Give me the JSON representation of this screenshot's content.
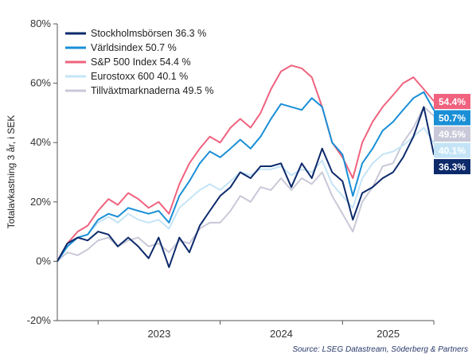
{
  "chart_data": {
    "type": "line",
    "ylabel": "Totalavkastning 3 år, i SEK",
    "y_ticks": [
      "80%",
      "60%",
      "40%",
      "20%",
      "0%",
      "-20%"
    ],
    "y_tick_values": [
      80,
      60,
      40,
      20,
      0,
      -20
    ],
    "ylim": [
      -20,
      80
    ],
    "x_ticks": [
      "2023",
      "2024",
      "2025"
    ],
    "x_range": [
      "2022-09-01",
      "2025-10-01"
    ],
    "grid": false,
    "legend_position": "top-left",
    "source": "Source: LSEG Datastream, Söderberg & Partners",
    "series": [
      {
        "name": "Stockholmsbörsen 36.3 %",
        "end_label": "36.3%",
        "color": "#0d2a6b",
        "x": [
          "2022-09",
          "2022-10",
          "2022-11",
          "2022-12",
          "2023-01",
          "2023-02",
          "2023-03",
          "2023-04",
          "2023-05",
          "2023-06",
          "2023-07",
          "2023-08",
          "2023-09",
          "2023-10",
          "2023-11",
          "2023-12",
          "2024-01",
          "2024-02",
          "2024-03",
          "2024-04",
          "2024-05",
          "2024-06",
          "2024-07",
          "2024-08",
          "2024-09",
          "2024-10",
          "2024-11",
          "2024-12",
          "2025-01",
          "2025-02",
          "2025-03",
          "2025-04",
          "2025-05",
          "2025-06",
          "2025-07",
          "2025-08",
          "2025-09",
          "2025-10"
        ],
        "values": [
          0,
          6,
          8,
          7,
          10,
          9,
          5,
          8,
          5,
          1,
          8,
          -2,
          8,
          3,
          12,
          17,
          22,
          25,
          30,
          28,
          32,
          32,
          33,
          25,
          33,
          28,
          38,
          30,
          27,
          14,
          23,
          25,
          28,
          30,
          35,
          42,
          52,
          36
        ]
      },
      {
        "name": "Världsindex 50.7 %",
        "end_label": "50.7%",
        "color": "#1a8fd6",
        "x": [
          "2022-09",
          "2022-10",
          "2022-11",
          "2022-12",
          "2023-01",
          "2023-02",
          "2023-03",
          "2023-04",
          "2023-05",
          "2023-06",
          "2023-07",
          "2023-08",
          "2023-09",
          "2023-10",
          "2023-11",
          "2023-12",
          "2024-01",
          "2024-02",
          "2024-03",
          "2024-04",
          "2024-05",
          "2024-06",
          "2024-07",
          "2024-08",
          "2024-09",
          "2024-10",
          "2024-11",
          "2024-12",
          "2025-01",
          "2025-02",
          "2025-03",
          "2025-04",
          "2025-05",
          "2025-06",
          "2025-07",
          "2025-08",
          "2025-09",
          "2025-10"
        ],
        "values": [
          0,
          5,
          8,
          9,
          14,
          16,
          15,
          18,
          17,
          16,
          17,
          13,
          22,
          27,
          33,
          37,
          35,
          38,
          41,
          38,
          42,
          48,
          53,
          52,
          51,
          55,
          52,
          40,
          36,
          22,
          33,
          38,
          44,
          47,
          51,
          55,
          57,
          51
        ]
      },
      {
        "name": "S&P 500 Index 54.4 %",
        "end_label": "54.4%",
        "color": "#f0627e",
        "x": [
          "2022-09",
          "2022-10",
          "2022-11",
          "2022-12",
          "2023-01",
          "2023-02",
          "2023-03",
          "2023-04",
          "2023-05",
          "2023-06",
          "2023-07",
          "2023-08",
          "2023-09",
          "2023-10",
          "2023-11",
          "2023-12",
          "2024-01",
          "2024-02",
          "2024-03",
          "2024-04",
          "2024-05",
          "2024-06",
          "2024-07",
          "2024-08",
          "2024-09",
          "2024-10",
          "2024-11",
          "2024-12",
          "2025-01",
          "2025-02",
          "2025-03",
          "2025-04",
          "2025-05",
          "2025-06",
          "2025-07",
          "2025-08",
          "2025-09",
          "2025-10"
        ],
        "values": [
          0,
          6,
          10,
          12,
          17,
          21,
          19,
          23,
          21,
          18,
          20,
          16,
          26,
          33,
          38,
          42,
          40,
          45,
          48,
          45,
          50,
          58,
          64,
          66,
          65,
          62,
          52,
          40,
          35,
          28,
          40,
          47,
          52,
          56,
          60,
          62,
          58,
          54
        ]
      },
      {
        "name": "Eurostoxx 600 40.1 %",
        "end_label": "40.1%",
        "color": "#c4e4f6",
        "x": [
          "2022-09",
          "2022-10",
          "2022-11",
          "2022-12",
          "2023-01",
          "2023-02",
          "2023-03",
          "2023-04",
          "2023-05",
          "2023-06",
          "2023-07",
          "2023-08",
          "2023-09",
          "2023-10",
          "2023-11",
          "2023-12",
          "2024-01",
          "2024-02",
          "2024-03",
          "2024-04",
          "2024-05",
          "2024-06",
          "2024-07",
          "2024-08",
          "2024-09",
          "2024-10",
          "2024-11",
          "2024-12",
          "2025-01",
          "2025-02",
          "2025-03",
          "2025-04",
          "2025-05",
          "2025-06",
          "2025-07",
          "2025-08",
          "2025-09",
          "2025-10"
        ],
        "values": [
          0,
          5,
          8,
          9,
          13,
          15,
          13,
          16,
          14,
          13,
          14,
          11,
          18,
          21,
          24,
          26,
          24,
          27,
          30,
          29,
          31,
          31,
          32,
          29,
          31,
          30,
          34,
          26,
          22,
          18,
          28,
          33,
          36,
          37,
          39,
          42,
          45,
          40
        ]
      },
      {
        "name": "Tillväxtmarknaderna 49.5 %",
        "end_label": "49.5%",
        "color": "#c8c8d8",
        "x": [
          "2022-09",
          "2022-10",
          "2022-11",
          "2022-12",
          "2023-01",
          "2023-02",
          "2023-03",
          "2023-04",
          "2023-05",
          "2023-06",
          "2023-07",
          "2023-08",
          "2023-09",
          "2023-10",
          "2023-11",
          "2023-12",
          "2024-01",
          "2024-02",
          "2024-03",
          "2024-04",
          "2024-05",
          "2024-06",
          "2024-07",
          "2024-08",
          "2024-09",
          "2024-10",
          "2024-11",
          "2024-12",
          "2025-01",
          "2025-02",
          "2025-03",
          "2025-04",
          "2025-05",
          "2025-06",
          "2025-07",
          "2025-08",
          "2025-09",
          "2025-10"
        ],
        "values": [
          0,
          3,
          2,
          4,
          7,
          8,
          5,
          7,
          8,
          5,
          6,
          3,
          7,
          6,
          11,
          13,
          13,
          17,
          22,
          20,
          25,
          24,
          28,
          24,
          28,
          26,
          30,
          22,
          16,
          10,
          20,
          25,
          32,
          33,
          40,
          45,
          52,
          49
        ]
      }
    ]
  }
}
